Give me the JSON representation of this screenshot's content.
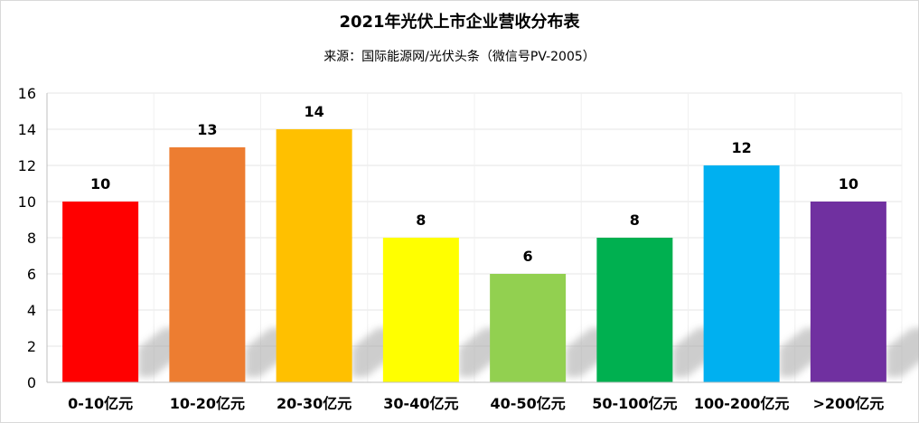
{
  "chart_data": {
    "type": "bar",
    "title": "2021年光伏上市企业营收分布表",
    "subtitle": "来源：国际能源网/光伏头条（微信号PV-2005）",
    "categories": [
      "0-10亿元",
      "10-20亿元",
      "20-30亿元",
      "30-40亿元",
      "40-50亿元",
      "50-100亿元",
      "100-200亿元",
      ">200亿元"
    ],
    "values": [
      10,
      13,
      14,
      8,
      6,
      8,
      12,
      10
    ],
    "colors": [
      "#ff0000",
      "#ed7d31",
      "#ffc000",
      "#ffff00",
      "#92d050",
      "#00b050",
      "#00b0f0",
      "#7030a0"
    ],
    "yticks": [
      "0",
      "2",
      "4",
      "6",
      "8",
      "10",
      "12",
      "14",
      "16"
    ],
    "ylim": [
      0,
      16
    ],
    "grid": true,
    "legend": "none"
  }
}
